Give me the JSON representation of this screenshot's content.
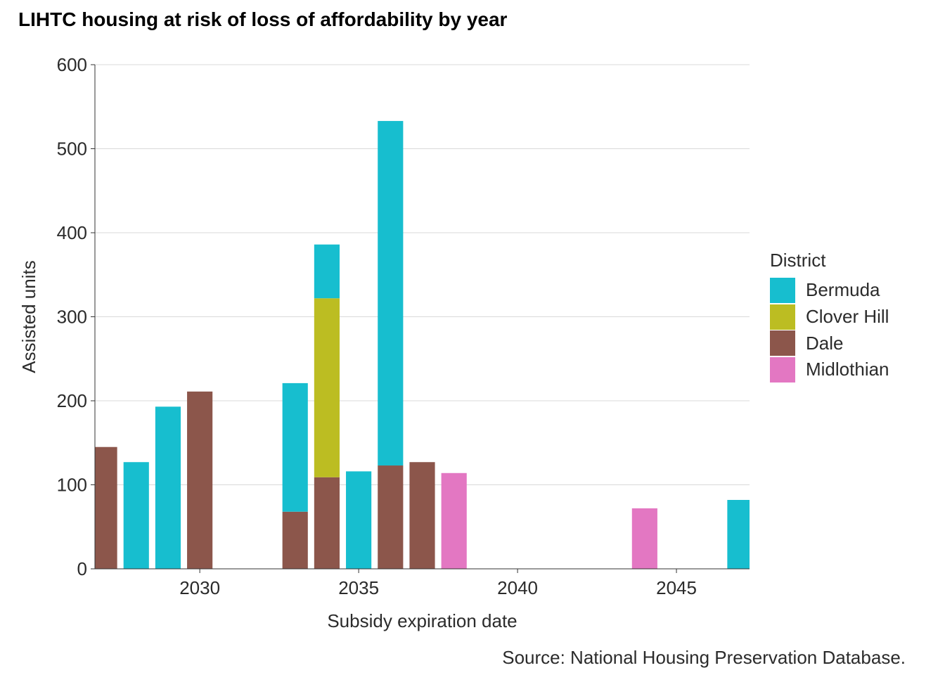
{
  "chart_data": {
    "type": "bar",
    "stacked": true,
    "title": "LIHTC housing at risk of loss of affordability by year",
    "caption": "Source: National Housing Preservation Database.",
    "xlabel": "Subsidy expiration date",
    "ylabel": "Assisted units",
    "xlim": [
      2026.7,
      2047.3
    ],
    "ylim": [
      0,
      600
    ],
    "xticks": [
      "2030",
      "2035",
      "2040",
      "2045"
    ],
    "yticks": [
      "0",
      "100",
      "200",
      "300",
      "400",
      "500",
      "600"
    ],
    "grid": true,
    "legend_title": "District",
    "legend_position": "right",
    "series": [
      {
        "name": "Bermuda",
        "color": "#17becf"
      },
      {
        "name": "Clover Hill",
        "color": "#bcbd22"
      },
      {
        "name": "Dale",
        "color": "#8c564b"
      },
      {
        "name": "Midlothian",
        "color": "#e377c2"
      }
    ],
    "bars": [
      {
        "year": 2027,
        "segments": {
          "Dale": 145
        }
      },
      {
        "year": 2028,
        "segments": {
          "Bermuda": 127
        }
      },
      {
        "year": 2029,
        "segments": {
          "Bermuda": 193
        }
      },
      {
        "year": 2030,
        "segments": {
          "Dale": 211
        }
      },
      {
        "year": 2033,
        "segments": {
          "Dale": 68,
          "Bermuda": 153
        }
      },
      {
        "year": 2034,
        "segments": {
          "Dale": 109,
          "Clover Hill": 213,
          "Bermuda": 64
        }
      },
      {
        "year": 2035,
        "segments": {
          "Bermuda": 116
        }
      },
      {
        "year": 2036,
        "segments": {
          "Dale": 123,
          "Bermuda": 410
        }
      },
      {
        "year": 2037,
        "segments": {
          "Dale": 127
        }
      },
      {
        "year": 2038,
        "segments": {
          "Midlothian": 114
        }
      },
      {
        "year": 2044,
        "segments": {
          "Midlothian": 72
        }
      },
      {
        "year": 2047,
        "segments": {
          "Bermuda": 82
        }
      }
    ]
  }
}
